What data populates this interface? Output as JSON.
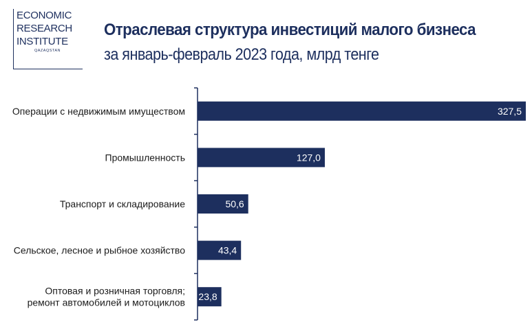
{
  "logo": {
    "lines": [
      "ECONOMIC",
      "RESEARCH",
      "INSTITUTE"
    ],
    "sub": "QAZAQSTAN"
  },
  "header": {
    "title": "Отраслевая структура инвестиций малого бизнеса",
    "subtitle": "за январь-февраль 2023 года, млрд тенге"
  },
  "colors": {
    "bar": "#1d2f5e",
    "axis": "#1d2f5e",
    "text": "#1b1b1b"
  },
  "chart_data": {
    "type": "bar",
    "orientation": "horizontal",
    "categories": [
      [
        "Операции с недвижимым имуществом"
      ],
      [
        "Промышленность"
      ],
      [
        "Транспорт и складирование"
      ],
      [
        "Сельское, лесное и рыбное хозяйство"
      ],
      [
        "Оптовая и розничная торговля;",
        "ремонт автомобилей и мотоциклов"
      ]
    ],
    "values": [
      327.5,
      127.0,
      50.6,
      43.4,
      23.8
    ],
    "value_labels": [
      "327,5",
      "127,0",
      "50,6",
      "43,4",
      "23,8"
    ],
    "xlim": [
      0,
      327.5
    ],
    "grid": false,
    "legend": "none"
  }
}
